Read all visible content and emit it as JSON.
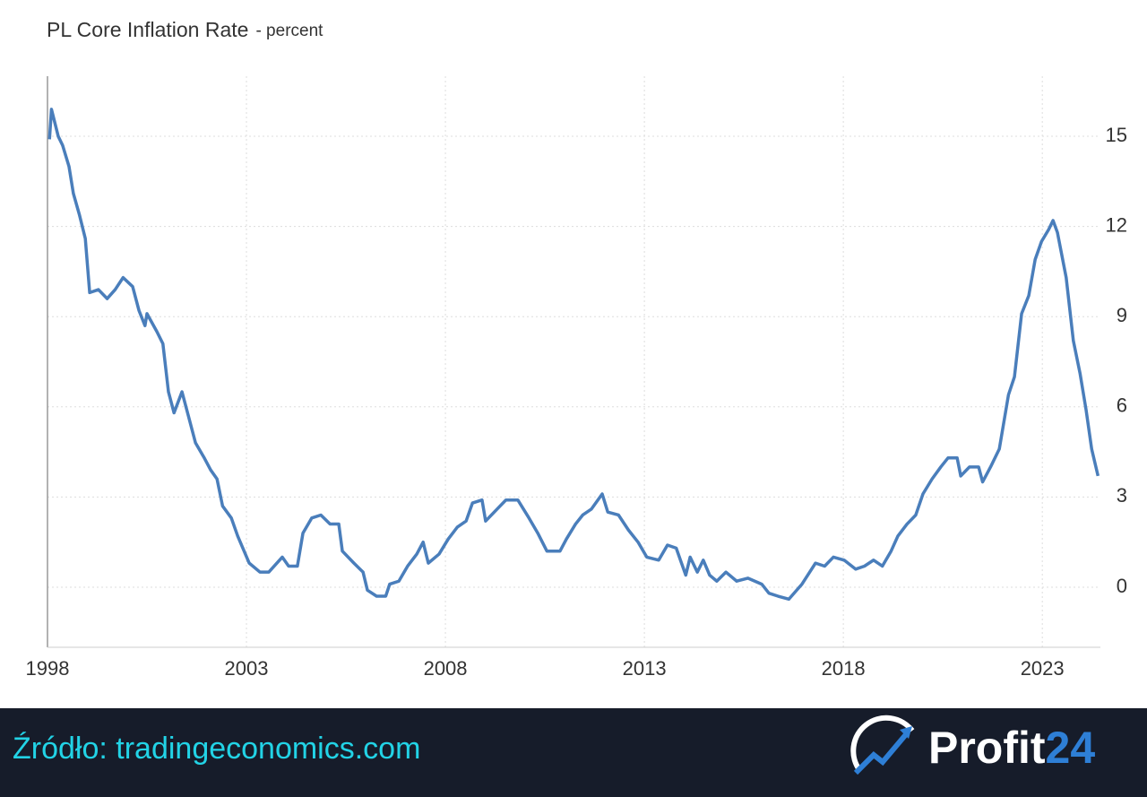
{
  "chart_data": {
    "type": "line",
    "title": "PL Core Inflation Rate",
    "subtitle": "- percent",
    "x": [
      1998.05,
      1998.1,
      1998.27,
      1998.38,
      1998.54,
      1998.65,
      1998.8,
      1998.95,
      1999.06,
      1999.28,
      1999.5,
      1999.7,
      1999.9,
      2000.14,
      2000.3,
      2000.45,
      2000.5,
      2000.75,
      2000.9,
      2001.04,
      2001.18,
      2001.38,
      2001.54,
      2001.72,
      2001.94,
      2002.1,
      2002.26,
      2002.4,
      2002.62,
      2002.78,
      2003.07,
      2003.34,
      2003.56,
      2003.9,
      2004.06,
      2004.28,
      2004.42,
      2004.64,
      2004.87,
      2005.1,
      2005.32,
      2005.41,
      2005.7,
      2005.93,
      2006.04,
      2006.27,
      2006.5,
      2006.6,
      2006.83,
      2007.05,
      2007.28,
      2007.44,
      2007.57,
      2007.84,
      2008.07,
      2008.3,
      2008.52,
      2008.68,
      2008.92,
      2009.01,
      2009.3,
      2009.52,
      2009.82,
      2010.1,
      2010.32,
      2010.55,
      2010.88,
      2011.04,
      2011.27,
      2011.45,
      2011.67,
      2011.94,
      2012.08,
      2012.35,
      2012.6,
      2012.84,
      2013.06,
      2013.36,
      2013.58,
      2013.8,
      2014.04,
      2014.15,
      2014.33,
      2014.48,
      2014.64,
      2014.82,
      2015.05,
      2015.32,
      2015.6,
      2015.95,
      2016.13,
      2016.36,
      2016.63,
      2016.96,
      2017.3,
      2017.53,
      2017.75,
      2018.02,
      2018.31,
      2018.53,
      2018.76,
      2018.98,
      2019.2,
      2019.37,
      2019.6,
      2019.82,
      2020.0,
      2020.23,
      2020.45,
      2020.63,
      2020.86,
      2020.95,
      2021.17,
      2021.4,
      2021.5,
      2021.7,
      2021.92,
      2022.15,
      2022.3,
      2022.48,
      2022.66,
      2022.82,
      2022.98,
      2023.16,
      2023.27,
      2023.38,
      2023.6,
      2023.78,
      2023.95,
      2024.1,
      2024.24,
      2024.4
    ],
    "series": [
      {
        "name": "PL Core Inflation Rate",
        "color": "#4a7ebb",
        "values": [
          14.9,
          15.9,
          15.0,
          14.7,
          14.0,
          13.1,
          12.4,
          11.6,
          9.8,
          9.9,
          9.6,
          9.9,
          10.3,
          10.0,
          9.2,
          8.7,
          9.1,
          8.5,
          8.1,
          6.5,
          5.8,
          6.5,
          5.7,
          4.8,
          4.3,
          3.9,
          3.6,
          2.7,
          2.3,
          1.7,
          0.8,
          0.5,
          0.5,
          1.0,
          0.7,
          0.7,
          1.8,
          2.3,
          2.4,
          2.1,
          2.1,
          1.2,
          0.8,
          0.5,
          -0.1,
          -0.3,
          -0.3,
          0.1,
          0.2,
          0.7,
          1.1,
          1.5,
          0.8,
          1.1,
          1.6,
          2.0,
          2.2,
          2.8,
          2.9,
          2.2,
          2.6,
          2.9,
          2.9,
          2.3,
          1.8,
          1.2,
          1.2,
          1.6,
          2.1,
          2.4,
          2.6,
          3.1,
          2.5,
          2.4,
          1.9,
          1.5,
          1.0,
          0.9,
          1.4,
          1.3,
          0.4,
          1.0,
          0.5,
          0.9,
          0.4,
          0.2,
          0.5,
          0.2,
          0.3,
          0.1,
          -0.2,
          -0.3,
          -0.4,
          0.1,
          0.8,
          0.7,
          1.0,
          0.9,
          0.6,
          0.7,
          0.9,
          0.7,
          1.2,
          1.7,
          2.1,
          2.4,
          3.1,
          3.6,
          4.0,
          4.3,
          4.3,
          3.7,
          4.0,
          4.0,
          3.5,
          4.0,
          4.6,
          6.4,
          7.0,
          9.1,
          9.7,
          10.9,
          11.5,
          11.9,
          12.2,
          11.8,
          10.3,
          8.2,
          7.1,
          5.9,
          4.6,
          3.7
        ]
      }
    ],
    "xlim": [
      1998,
      2024.46
    ],
    "xticks": [
      1998,
      2003,
      2008,
      2013,
      2018,
      2023
    ],
    "ylim": [
      -2,
      17
    ],
    "yticks": [
      0,
      3,
      6,
      9,
      12,
      15
    ],
    "grid": true
  },
  "footer": {
    "source": "Źródło: tradingeconomics.com",
    "brand": "Profit",
    "brand_number": "24"
  }
}
